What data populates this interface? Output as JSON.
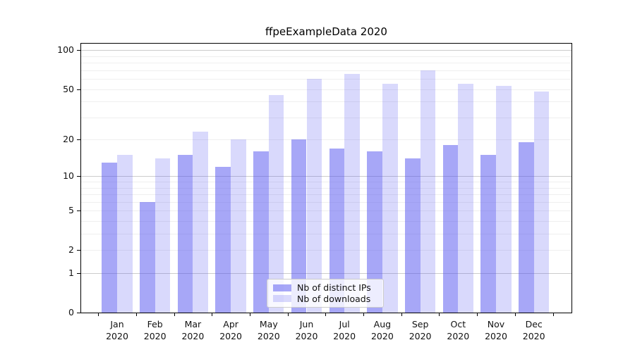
{
  "chart_data": {
    "type": "bar",
    "title": "ffpeExampleData 2020",
    "categories": [
      "Jan",
      "Feb",
      "Mar",
      "Apr",
      "May",
      "Jun",
      "Jul",
      "Aug",
      "Sep",
      "Oct",
      "Nov",
      "Dec"
    ],
    "xtick_second_line": "2020",
    "series": [
      {
        "name": "Nb of distinct IPs",
        "color_hex": "#5050f0",
        "alpha": 0.5,
        "values": [
          13,
          6,
          15,
          12,
          16,
          20,
          17,
          16,
          14,
          18,
          15,
          19
        ]
      },
      {
        "name": "Nb of downloads",
        "color_hex": "#5050f0",
        "alpha": 0.22,
        "values": [
          15,
          14,
          23,
          20,
          45,
          60,
          66,
          55,
          70,
          55,
          53,
          48
        ]
      }
    ],
    "yscale": "log1p",
    "ylim": [
      0,
      113
    ],
    "yticks": [
      0,
      1,
      2,
      5,
      10,
      20,
      50,
      100
    ],
    "gridlines": {
      "minor": [
        2,
        3,
        4,
        5,
        6,
        7,
        8,
        9,
        20,
        30,
        40,
        50,
        60,
        70,
        80,
        90
      ],
      "major": [
        1,
        10,
        100
      ]
    },
    "grid": "on",
    "legend_position": "lower center inside",
    "colors": {
      "bar_dark_rendered": "#a7a7f7",
      "bar_light_rendered": "#d9d9f9",
      "axis": "#000000",
      "grid_minor": "#efefef",
      "grid_major": "#cccccc",
      "legend_border": "#cccccc"
    }
  }
}
